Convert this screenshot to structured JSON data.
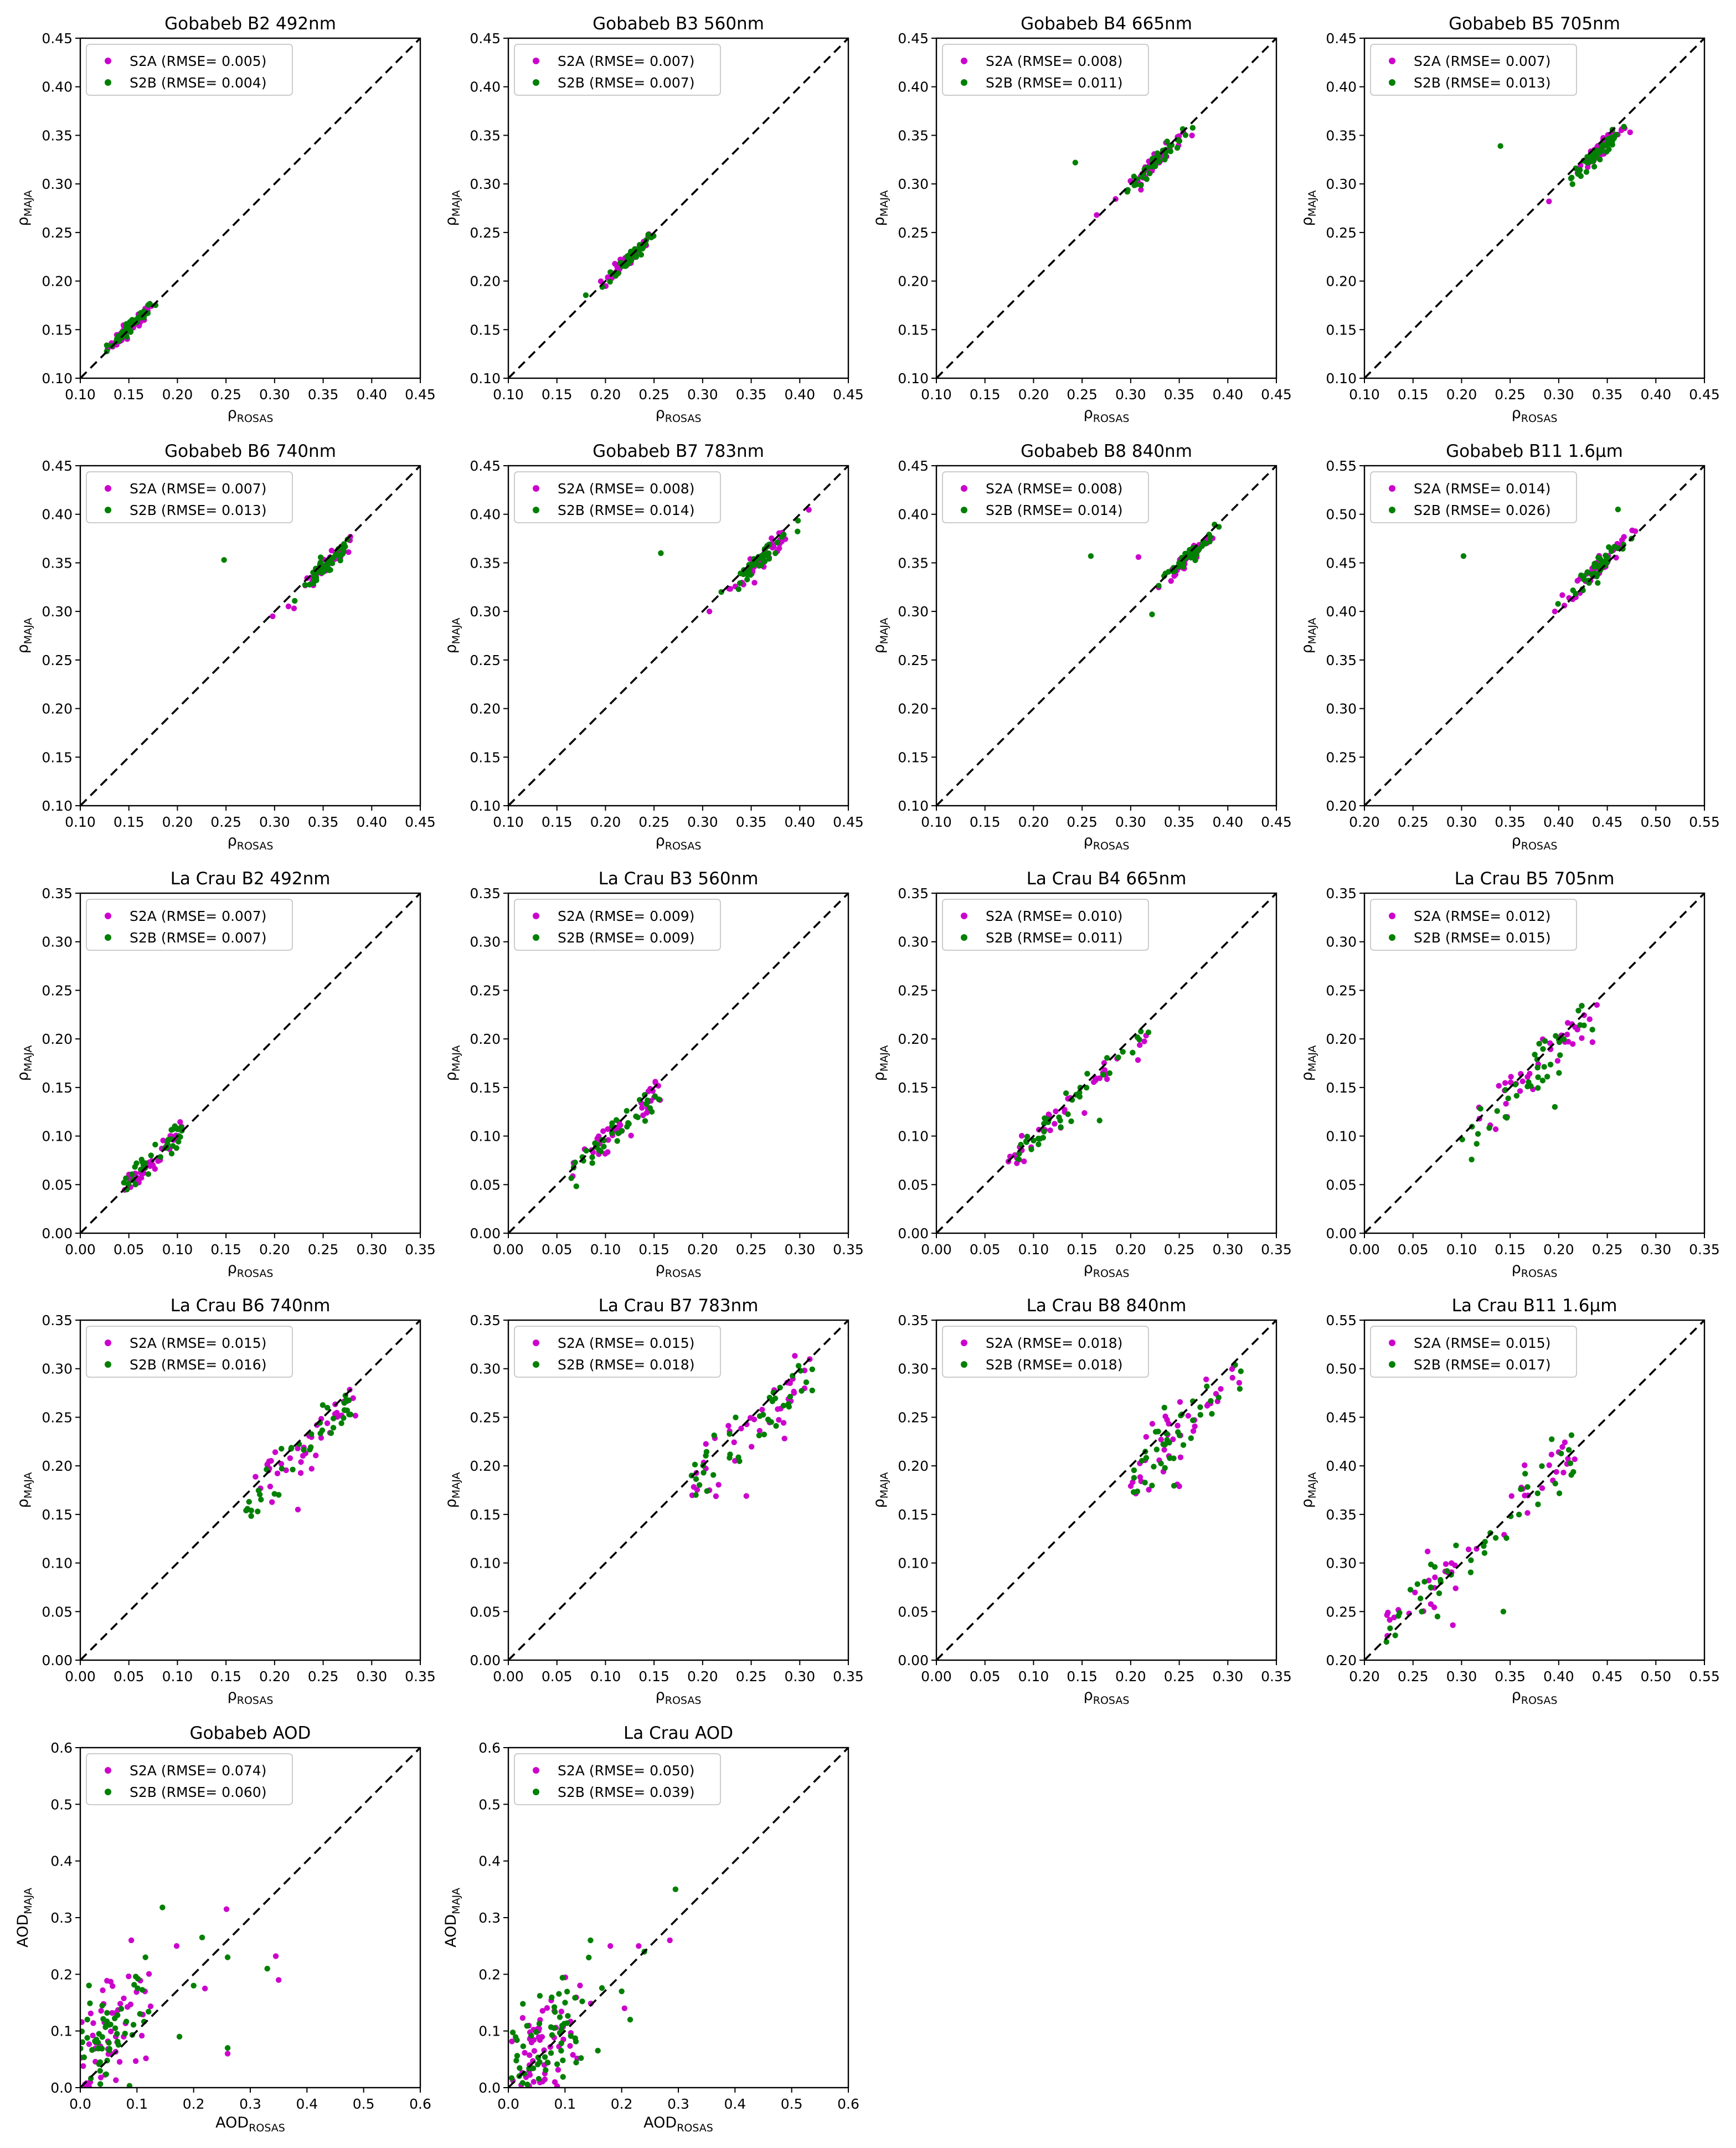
{
  "colors": {
    "S2A": "#cc00cc",
    "S2B": "#008000"
  },
  "chart_data": [
    {
      "type": "scatter",
      "title": "Gobabeb B2 492nm",
      "xlabel": {
        "main": "ρ",
        "sub": "ROSAS"
      },
      "ylabel": {
        "main": "ρ",
        "sub": "MAJA"
      },
      "xlim": [
        0.1,
        0.45
      ],
      "ylim": [
        0.1,
        0.45
      ],
      "ticks": [
        "0.10",
        "0.15",
        "0.20",
        "0.25",
        "0.30",
        "0.35",
        "0.40",
        "0.45"
      ],
      "legend": "top-left",
      "legend_entries": [
        "S2A (RMSE= 0.005)",
        "S2B (RMSE= 0.004)"
      ],
      "center": [
        0.152,
        0.153
      ],
      "spread": [
        0.012,
        0.01
      ],
      "n": 90,
      "series": [
        {
          "name": "S2A",
          "rmse": 0.005
        },
        {
          "name": "S2B",
          "rmse": 0.004
        }
      ]
    },
    {
      "type": "scatter",
      "title": "Gobabeb B3 560nm",
      "xlabel": {
        "main": "ρ",
        "sub": "ROSAS"
      },
      "ylabel": {
        "main": "ρ",
        "sub": "MAJA"
      },
      "xlim": [
        0.1,
        0.45
      ],
      "ylim": [
        0.1,
        0.45
      ],
      "ticks": [
        "0.10",
        "0.15",
        "0.20",
        "0.25",
        "0.30",
        "0.35",
        "0.40",
        "0.45"
      ],
      "legend": "top-left",
      "legend_entries": [
        "S2A (RMSE= 0.007)",
        "S2B (RMSE= 0.007)"
      ],
      "center": [
        0.225,
        0.224
      ],
      "spread": [
        0.013,
        0.011
      ],
      "n": 90,
      "series": [
        {
          "name": "S2A",
          "rmse": 0.007
        },
        {
          "name": "S2B",
          "rmse": 0.007
        }
      ]
    },
    {
      "type": "scatter",
      "title": "Gobabeb B4 665nm",
      "xlabel": {
        "main": "ρ",
        "sub": "ROSAS"
      },
      "ylabel": {
        "main": "ρ",
        "sub": "MAJA"
      },
      "xlim": [
        0.1,
        0.45
      ],
      "ylim": [
        0.1,
        0.45
      ],
      "ticks": [
        "0.10",
        "0.15",
        "0.20",
        "0.25",
        "0.30",
        "0.35",
        "0.40",
        "0.45"
      ],
      "legend": "top-left",
      "legend_entries": [
        "S2A (RMSE= 0.008)",
        "S2B (RMSE= 0.011)"
      ],
      "center": [
        0.325,
        0.322
      ],
      "spread": [
        0.014,
        0.012
      ],
      "n": 90,
      "outliers": [
        [
          0.243,
          0.322
        ],
        [
          0.265,
          0.268
        ]
      ],
      "series": [
        {
          "name": "S2A",
          "rmse": 0.008
        },
        {
          "name": "S2B",
          "rmse": 0.011
        }
      ]
    },
    {
      "type": "scatter",
      "title": "Gobabeb B5 705nm",
      "xlabel": {
        "main": "ρ",
        "sub": "ROSAS"
      },
      "ylabel": {
        "main": "ρ",
        "sub": "MAJA"
      },
      "xlim": [
        0.1,
        0.45
      ],
      "ylim": [
        0.1,
        0.45
      ],
      "ticks": [
        "0.10",
        "0.15",
        "0.20",
        "0.25",
        "0.30",
        "0.35",
        "0.40",
        "0.45"
      ],
      "legend": "top-left",
      "legend_entries": [
        "S2A (RMSE= 0.007)",
        "S2B (RMSE= 0.013)"
      ],
      "center": [
        0.342,
        0.334
      ],
      "spread": [
        0.014,
        0.012
      ],
      "n": 90,
      "outliers": [
        [
          0.24,
          0.339
        ],
        [
          0.29,
          0.282
        ]
      ],
      "series": [
        {
          "name": "S2A",
          "rmse": 0.007
        },
        {
          "name": "S2B",
          "rmse": 0.013
        }
      ]
    },
    {
      "type": "scatter",
      "title": "Gobabeb B6 740nm",
      "xlabel": {
        "main": "ρ",
        "sub": "ROSAS"
      },
      "ylabel": {
        "main": "ρ",
        "sub": "MAJA"
      },
      "xlim": [
        0.1,
        0.45
      ],
      "ylim": [
        0.1,
        0.45
      ],
      "ticks": [
        "0.10",
        "0.15",
        "0.20",
        "0.25",
        "0.30",
        "0.35",
        "0.40",
        "0.45"
      ],
      "legend": "top-left",
      "legend_entries": [
        "S2A (RMSE= 0.007)",
        "S2B (RMSE= 0.013)"
      ],
      "center": [
        0.354,
        0.347
      ],
      "spread": [
        0.015,
        0.013
      ],
      "n": 90,
      "outliers": [
        [
          0.248,
          0.353
        ],
        [
          0.298,
          0.295
        ]
      ],
      "series": [
        {
          "name": "S2A",
          "rmse": 0.007
        },
        {
          "name": "S2B",
          "rmse": 0.013
        }
      ]
    },
    {
      "type": "scatter",
      "title": "Gobabeb B7 783nm",
      "xlabel": {
        "main": "ρ",
        "sub": "ROSAS"
      },
      "ylabel": {
        "main": "ρ",
        "sub": "MAJA"
      },
      "xlim": [
        0.1,
        0.45
      ],
      "ylim": [
        0.1,
        0.45
      ],
      "ticks": [
        "0.10",
        "0.15",
        "0.20",
        "0.25",
        "0.30",
        "0.35",
        "0.40",
        "0.45"
      ],
      "legend": "top-left",
      "legend_entries": [
        "S2A (RMSE= 0.008)",
        "S2B (RMSE= 0.014)"
      ],
      "center": [
        0.362,
        0.356
      ],
      "spread": [
        0.015,
        0.013
      ],
      "n": 90,
      "outliers": [
        [
          0.257,
          0.36
        ],
        [
          0.307,
          0.3
        ]
      ],
      "series": [
        {
          "name": "S2A",
          "rmse": 0.008
        },
        {
          "name": "S2B",
          "rmse": 0.014
        }
      ]
    },
    {
      "type": "scatter",
      "title": "Gobabeb B8 840nm",
      "xlabel": {
        "main": "ρ",
        "sub": "ROSAS"
      },
      "ylabel": {
        "main": "ρ",
        "sub": "MAJA"
      },
      "xlim": [
        0.1,
        0.45
      ],
      "ylim": [
        0.1,
        0.45
      ],
      "ticks": [
        "0.10",
        "0.15",
        "0.20",
        "0.25",
        "0.30",
        "0.35",
        "0.40",
        "0.45"
      ],
      "legend": "top-left",
      "legend_entries": [
        "S2A (RMSE= 0.008)",
        "S2B (RMSE= 0.014)"
      ],
      "center": [
        0.358,
        0.354
      ],
      "spread": [
        0.014,
        0.012
      ],
      "n": 90,
      "outliers": [
        [
          0.259,
          0.357
        ],
        [
          0.308,
          0.356
        ],
        [
          0.322,
          0.297
        ]
      ],
      "series": [
        {
          "name": "S2A",
          "rmse": 0.008
        },
        {
          "name": "S2B",
          "rmse": 0.014
        }
      ]
    },
    {
      "type": "scatter",
      "title": "Gobabeb B11 1.6μm",
      "xlabel": {
        "main": "ρ",
        "sub": "ROSAS"
      },
      "ylabel": {
        "main": "ρ",
        "sub": "MAJA"
      },
      "xlim": [
        0.2,
        0.55
      ],
      "ylim": [
        0.2,
        0.55
      ],
      "ticks": [
        "0.20",
        "0.25",
        "0.30",
        "0.35",
        "0.40",
        "0.45",
        "0.50",
        "0.55"
      ],
      "legend": "top-left",
      "legend_entries": [
        "S2A (RMSE= 0.014)",
        "S2B (RMSE= 0.026)"
      ],
      "center": [
        0.443,
        0.448
      ],
      "spread": [
        0.015,
        0.016
      ],
      "n": 90,
      "outliers": [
        [
          0.302,
          0.457
        ],
        [
          0.396,
          0.4
        ],
        [
          0.461,
          0.505
        ]
      ],
      "series": [
        {
          "name": "S2A",
          "rmse": 0.014
        },
        {
          "name": "S2B",
          "rmse": 0.026
        }
      ]
    },
    {
      "type": "scatter",
      "title": "La Crau B2 492nm",
      "xlabel": {
        "main": "ρ",
        "sub": "ROSAS"
      },
      "ylabel": {
        "main": "ρ",
        "sub": "MAJA"
      },
      "xlim": [
        0.0,
        0.35
      ],
      "ylim": [
        0.0,
        0.35
      ],
      "ticks": [
        "0.00",
        "0.05",
        "0.10",
        "0.15",
        "0.20",
        "0.25",
        "0.30",
        "0.35"
      ],
      "legend": "top-left",
      "legend_entries": [
        "S2A (RMSE= 0.007)",
        "S2B (RMSE= 0.007)"
      ],
      "line_range": [
        0.04,
        0.105
      ],
      "slope": 0.95,
      "intercept": 0.005,
      "spread": [
        0.006,
        0.006
      ],
      "n": 80,
      "series": [
        {
          "name": "S2A",
          "rmse": 0.007
        },
        {
          "name": "S2B",
          "rmse": 0.007
        }
      ]
    },
    {
      "type": "scatter",
      "title": "La Crau B3 560nm",
      "xlabel": {
        "main": "ρ",
        "sub": "ROSAS"
      },
      "ylabel": {
        "main": "ρ",
        "sub": "MAJA"
      },
      "xlim": [
        0.0,
        0.35
      ],
      "ylim": [
        0.0,
        0.35
      ],
      "ticks": [
        "0.00",
        "0.05",
        "0.10",
        "0.15",
        "0.20",
        "0.25",
        "0.30",
        "0.35"
      ],
      "legend": "top-left",
      "legend_entries": [
        "S2A (RMSE= 0.009)",
        "S2B (RMSE= 0.009)"
      ],
      "line_range": [
        0.065,
        0.155
      ],
      "slope": 0.95,
      "intercept": 0.0,
      "spread": [
        0.007,
        0.008
      ],
      "n": 80,
      "series": [
        {
          "name": "S2A",
          "rmse": 0.009
        },
        {
          "name": "S2B",
          "rmse": 0.009
        }
      ]
    },
    {
      "type": "scatter",
      "title": "La Crau B4 665nm",
      "xlabel": {
        "main": "ρ",
        "sub": "ROSAS"
      },
      "ylabel": {
        "main": "ρ",
        "sub": "MAJA"
      },
      "xlim": [
        0.0,
        0.35
      ],
      "ylim": [
        0.0,
        0.35
      ],
      "ticks": [
        "0.00",
        "0.05",
        "0.10",
        "0.15",
        "0.20",
        "0.25",
        "0.30",
        "0.35"
      ],
      "legend": "top-left",
      "legend_entries": [
        "S2A (RMSE= 0.010)",
        "S2B (RMSE= 0.011)"
      ],
      "line_range": [
        0.075,
        0.22
      ],
      "slope": 0.92,
      "intercept": 0.005,
      "spread": [
        0.008,
        0.008
      ],
      "n": 80,
      "outliers": [
        [
          0.168,
          0.116
        ]
      ],
      "series": [
        {
          "name": "S2A",
          "rmse": 0.01
        },
        {
          "name": "S2B",
          "rmse": 0.011
        }
      ]
    },
    {
      "type": "scatter",
      "title": "La Crau B5 705nm",
      "xlabel": {
        "main": "ρ",
        "sub": "ROSAS"
      },
      "ylabel": {
        "main": "ρ",
        "sub": "MAJA"
      },
      "xlim": [
        0.0,
        0.35
      ],
      "ylim": [
        0.0,
        0.35
      ],
      "ticks": [
        "0.00",
        "0.05",
        "0.10",
        "0.15",
        "0.20",
        "0.25",
        "0.30",
        "0.35"
      ],
      "legend": "top-left",
      "legend_entries": [
        "S2A (RMSE= 0.012)",
        "S2B (RMSE= 0.015)"
      ],
      "line_range": [
        0.11,
        0.24
      ],
      "slope": 0.95,
      "intercept": 0.0,
      "spread": [
        0.01,
        0.012
      ],
      "n": 80,
      "outliers": [
        [
          0.196,
          0.13
        ]
      ],
      "series": [
        {
          "name": "S2A",
          "rmse": 0.012
        },
        {
          "name": "S2B",
          "rmse": 0.015
        }
      ]
    },
    {
      "type": "scatter",
      "title": "La Crau B6 740nm",
      "xlabel": {
        "main": "ρ",
        "sub": "ROSAS"
      },
      "ylabel": {
        "main": "ρ",
        "sub": "MAJA"
      },
      "xlim": [
        0.0,
        0.35
      ],
      "ylim": [
        0.0,
        0.35
      ],
      "ticks": [
        "0.00",
        "0.05",
        "0.10",
        "0.15",
        "0.20",
        "0.25",
        "0.30",
        "0.35"
      ],
      "legend": "top-left",
      "legend_entries": [
        "S2A (RMSE= 0.015)",
        "S2B (RMSE= 0.016)"
      ],
      "line_range": [
        0.17,
        0.28
      ],
      "slope": 0.95,
      "intercept": 0.0,
      "spread": [
        0.012,
        0.014
      ],
      "n": 80,
      "outliers": [
        [
          0.176,
          0.154
        ],
        [
          0.224,
          0.155
        ]
      ],
      "series": [
        {
          "name": "S2A",
          "rmse": 0.015
        },
        {
          "name": "S2B",
          "rmse": 0.016
        }
      ]
    },
    {
      "type": "scatter",
      "title": "La Crau B7 783nm",
      "xlabel": {
        "main": "ρ",
        "sub": "ROSAS"
      },
      "ylabel": {
        "main": "ρ",
        "sub": "MAJA"
      },
      "xlim": [
        0.0,
        0.35
      ],
      "ylim": [
        0.0,
        0.35
      ],
      "ticks": [
        "0.00",
        "0.05",
        "0.10",
        "0.15",
        "0.20",
        "0.25",
        "0.30",
        "0.35"
      ],
      "legend": "top-left",
      "legend_entries": [
        "S2A (RMSE= 0.015)",
        "S2B (RMSE= 0.018)"
      ],
      "line_range": [
        0.19,
        0.31
      ],
      "slope": 0.95,
      "intercept": 0.0,
      "spread": [
        0.013,
        0.015
      ],
      "n": 80,
      "outliers": [
        [
          0.193,
          0.17
        ],
        [
          0.245,
          0.169
        ]
      ],
      "series": [
        {
          "name": "S2A",
          "rmse": 0.015
        },
        {
          "name": "S2B",
          "rmse": 0.018
        }
      ]
    },
    {
      "type": "scatter",
      "title": "La Crau B8 840nm",
      "xlabel": {
        "main": "ρ",
        "sub": "ROSAS"
      },
      "ylabel": {
        "main": "ρ",
        "sub": "MAJA"
      },
      "xlim": [
        0.0,
        0.35
      ],
      "ylim": [
        0.0,
        0.35
      ],
      "ticks": [
        "0.00",
        "0.05",
        "0.10",
        "0.15",
        "0.20",
        "0.25",
        "0.30",
        "0.35"
      ],
      "legend": "top-left",
      "legend_entries": [
        "S2A (RMSE= 0.018)",
        "S2B (RMSE= 0.018)"
      ],
      "line_range": [
        0.2,
        0.31
      ],
      "slope": 0.95,
      "intercept": 0.0,
      "spread": [
        0.013,
        0.016
      ],
      "n": 80,
      "outliers": [
        [
          0.203,
          0.173
        ],
        [
          0.25,
          0.179
        ]
      ],
      "series": [
        {
          "name": "S2A",
          "rmse": 0.018
        },
        {
          "name": "S2B",
          "rmse": 0.018
        }
      ]
    },
    {
      "type": "scatter",
      "title": "La Crau B11 1.6μm",
      "xlabel": {
        "main": "ρ",
        "sub": "ROSAS"
      },
      "ylabel": {
        "main": "ρ",
        "sub": "MAJA"
      },
      "xlim": [
        0.2,
        0.55
      ],
      "ylim": [
        0.2,
        0.55
      ],
      "ticks": [
        "0.20",
        "0.25",
        "0.30",
        "0.35",
        "0.40",
        "0.45",
        "0.50",
        "0.55"
      ],
      "legend": "top-left",
      "legend_entries": [
        "S2A (RMSE= 0.015)",
        "S2B (RMSE= 0.017)"
      ],
      "line_range": [
        0.22,
        0.42
      ],
      "slope": 0.97,
      "intercept": 0.01,
      "spread": [
        0.014,
        0.015
      ],
      "n": 90,
      "outliers": [
        [
          0.343,
          0.25
        ],
        [
          0.291,
          0.236
        ]
      ],
      "series": [
        {
          "name": "S2A",
          "rmse": 0.015
        },
        {
          "name": "S2B",
          "rmse": 0.017
        }
      ]
    },
    {
      "type": "scatter",
      "title": "Gobabeb AOD",
      "xlabel": {
        "main": "AOD",
        "sub": "ROSAS"
      },
      "ylabel": {
        "main": "AOD",
        "sub": "MAJA"
      },
      "xlim": [
        0.0,
        0.6
      ],
      "ylim": [
        0.0,
        0.6
      ],
      "ticks": [
        "0.0",
        "0.1",
        "0.2",
        "0.3",
        "0.4",
        "0.5",
        "0.6"
      ],
      "legend": "top-left",
      "legend_entries": [
        "S2A (RMSE= 0.074)",
        "S2B (RMSE= 0.060)"
      ],
      "cluster": [
        0.05,
        0.09
      ],
      "spread": [
        0.035,
        0.045
      ],
      "n": 110,
      "outliers": [
        [
          0.145,
          0.318
        ],
        [
          0.258,
          0.315
        ],
        [
          0.215,
          0.265
        ],
        [
          0.17,
          0.25
        ],
        [
          0.33,
          0.21
        ],
        [
          0.35,
          0.19
        ],
        [
          0.26,
          0.07
        ],
        [
          0.26,
          0.06
        ],
        [
          0.26,
          0.23
        ],
        [
          0.345,
          0.232
        ],
        [
          0.2,
          0.18
        ],
        [
          0.22,
          0.175
        ],
        [
          0.115,
          0.23
        ],
        [
          0.09,
          0.26
        ],
        [
          0.175,
          0.09
        ]
      ],
      "series": [
        {
          "name": "S2A",
          "rmse": 0.074
        },
        {
          "name": "S2B",
          "rmse": 0.06
        }
      ]
    },
    {
      "type": "scatter",
      "title": "La Crau AOD",
      "xlabel": {
        "main": "AOD",
        "sub": "ROSAS"
      },
      "ylabel": {
        "main": "AOD",
        "sub": "MAJA"
      },
      "xlim": [
        0.0,
        0.6
      ],
      "ylim": [
        0.0,
        0.6
      ],
      "ticks": [
        "0.0",
        "0.1",
        "0.2",
        "0.3",
        "0.4",
        "0.5",
        "0.6"
      ],
      "legend": "top-left",
      "legend_entries": [
        "S2A (RMSE= 0.050)",
        "S2B (RMSE= 0.039)"
      ],
      "cluster": [
        0.07,
        0.085
      ],
      "spread": [
        0.045,
        0.05
      ],
      "n": 120,
      "outliers": [
        [
          0.295,
          0.35
        ],
        [
          0.285,
          0.26
        ],
        [
          0.24,
          0.24
        ],
        [
          0.23,
          0.25
        ],
        [
          0.145,
          0.26
        ],
        [
          0.18,
          0.25
        ],
        [
          0.2,
          0.17
        ],
        [
          0.205,
          0.14
        ],
        [
          0.215,
          0.12
        ]
      ],
      "series": [
        {
          "name": "S2A",
          "rmse": 0.05
        },
        {
          "name": "S2B",
          "rmse": 0.039
        }
      ]
    }
  ]
}
